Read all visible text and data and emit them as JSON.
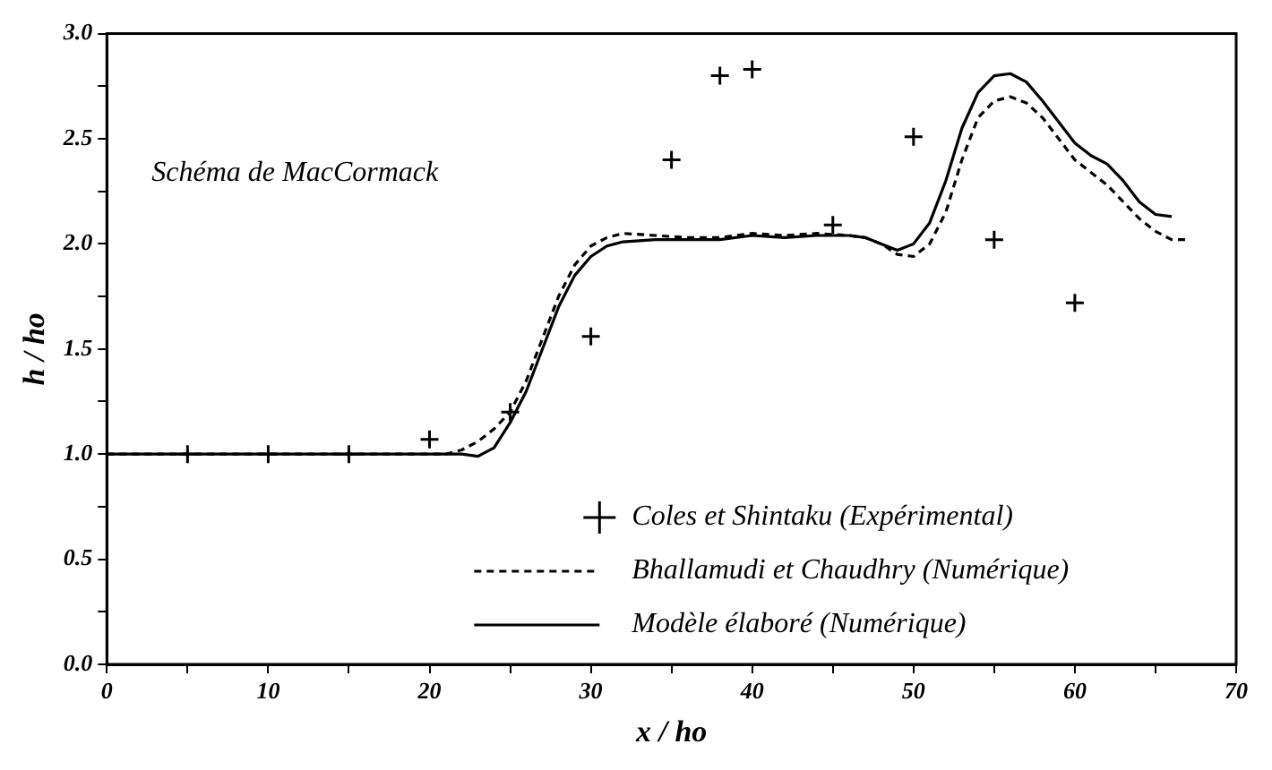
{
  "chart_data": {
    "type": "line",
    "xlabel": "x / ho",
    "ylabel": "h / ho",
    "annotations": [
      "Schéma de MacCormack"
    ],
    "xlim": [
      0,
      70
    ],
    "ylim": [
      0,
      3.0
    ],
    "xticks": [
      {
        "value": 0,
        "label": "0"
      },
      {
        "value": 5,
        "label": null
      },
      {
        "value": 10,
        "label": "10"
      },
      {
        "value": 15,
        "label": null
      },
      {
        "value": 20,
        "label": "20"
      },
      {
        "value": 25,
        "label": null
      },
      {
        "value": 30,
        "label": "30"
      },
      {
        "value": 35,
        "label": null
      },
      {
        "value": 40,
        "label": "40"
      },
      {
        "value": 45,
        "label": null
      },
      {
        "value": 50,
        "label": "50"
      },
      {
        "value": 55,
        "label": null
      },
      {
        "value": 60,
        "label": "60"
      },
      {
        "value": 65,
        "label": null
      },
      {
        "value": 70,
        "label": "70"
      }
    ],
    "yticks": [
      {
        "value": 0,
        "label": "0.0"
      },
      {
        "value": 0.25,
        "label": null
      },
      {
        "value": 0.5,
        "label": "0.5"
      },
      {
        "value": 0.75,
        "label": null
      },
      {
        "value": 1,
        "label": "1.0"
      },
      {
        "value": 1.25,
        "label": null
      },
      {
        "value": 1.5,
        "label": "1.5"
      },
      {
        "value": 1.75,
        "label": null
      },
      {
        "value": 2,
        "label": "2.0"
      },
      {
        "value": 2.25,
        "label": null
      },
      {
        "value": 2.5,
        "label": "2.5"
      },
      {
        "value": 2.75,
        "label": null
      },
      {
        "value": 3,
        "label": "3.0"
      }
    ],
    "grid": false,
    "legend": "bottom right",
    "series": [
      {
        "name": "Coles et Shintaku (Expérimental)",
        "type": "scatter",
        "marker": "cross",
        "color": "#000000",
        "x": [
          5,
          10,
          15,
          20,
          25,
          30,
          35,
          38,
          40,
          45,
          50,
          55,
          60
        ],
        "values": [
          1.0,
          1.0,
          1.0,
          1.07,
          1.2,
          1.56,
          2.4,
          2.8,
          2.83,
          2.09,
          2.51,
          2.02,
          1.72
        ]
      },
      {
        "name": "Bhallamudi et Chaudhry (Numérique)",
        "type": "line",
        "line_style": "dashed",
        "marker": "none",
        "color": "#000000",
        "x": [
          0,
          10,
          21,
          22,
          23,
          24,
          25,
          26,
          27,
          28,
          29,
          30,
          31,
          32,
          34,
          36,
          38,
          40,
          42,
          44,
          46,
          47,
          48,
          49,
          50,
          51,
          52,
          53,
          54,
          55,
          56,
          57,
          58,
          59,
          60,
          61,
          62,
          63,
          64,
          65,
          66,
          67
        ],
        "values": [
          1.0,
          1.0,
          1.0,
          1.02,
          1.06,
          1.12,
          1.2,
          1.35,
          1.55,
          1.75,
          1.9,
          1.99,
          2.03,
          2.05,
          2.04,
          2.03,
          2.03,
          2.05,
          2.04,
          2.05,
          2.04,
          2.03,
          2.0,
          1.95,
          1.94,
          2.0,
          2.15,
          2.4,
          2.6,
          2.68,
          2.7,
          2.67,
          2.6,
          2.5,
          2.4,
          2.34,
          2.28,
          2.2,
          2.12,
          2.06,
          2.02,
          2.02
        ]
      },
      {
        "name": "Modèle élaboré (Numérique)",
        "type": "line",
        "line_style": "solid",
        "marker": "none",
        "color": "#000000",
        "x": [
          0,
          10,
          22,
          23,
          24,
          25,
          26,
          27,
          28,
          29,
          30,
          31,
          32,
          34,
          36,
          38,
          40,
          42,
          44,
          46,
          47,
          48,
          49,
          50,
          51,
          52,
          53,
          54,
          55,
          56,
          57,
          58,
          59,
          60,
          61,
          62,
          63,
          64,
          65,
          66
        ],
        "values": [
          1.0,
          1.0,
          1.0,
          0.99,
          1.03,
          1.15,
          1.3,
          1.5,
          1.7,
          1.85,
          1.94,
          1.99,
          2.01,
          2.02,
          2.02,
          2.02,
          2.04,
          2.03,
          2.04,
          2.04,
          2.03,
          2.0,
          1.97,
          2.0,
          2.1,
          2.3,
          2.55,
          2.72,
          2.8,
          2.81,
          2.77,
          2.68,
          2.58,
          2.48,
          2.42,
          2.38,
          2.3,
          2.2,
          2.14,
          2.13
        ]
      }
    ]
  }
}
